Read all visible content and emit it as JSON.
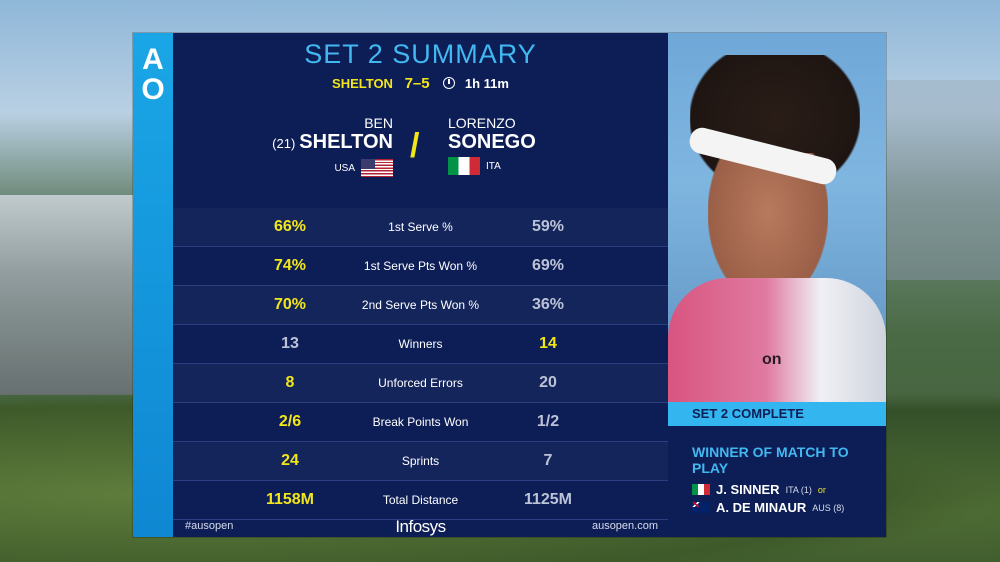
{
  "panel": {
    "logo": [
      "A",
      "O"
    ],
    "title": "SET 2 SUMMARY",
    "score_line": {
      "leader": "SHELTON",
      "score": "7–5",
      "duration": "1h 11m"
    },
    "player_left": {
      "first_name": "BEN",
      "seed": "(21)",
      "last_name": "SHELTON",
      "country": "USA",
      "flag": "usa-flag-icon"
    },
    "player_right": {
      "first_name": "LORENZO",
      "last_name": "SONEGO",
      "country": "ITA",
      "flag": "italy-flag-icon"
    },
    "divider": "/",
    "stats": [
      {
        "left": "66%",
        "label": "1st Serve %",
        "right": "59%",
        "leader": "left"
      },
      {
        "left": "74%",
        "label": "1st Serve Pts Won %",
        "right": "69%",
        "leader": "left"
      },
      {
        "left": "70%",
        "label": "2nd Serve Pts Won %",
        "right": "36%",
        "leader": "left"
      },
      {
        "left": "13",
        "label": "Winners",
        "right": "14",
        "leader": "right"
      },
      {
        "left": "8",
        "label": "Unforced Errors",
        "right": "20",
        "leader": "left"
      },
      {
        "left": "2/6",
        "label": "Break Points Won",
        "right": "1/2",
        "leader": "left"
      },
      {
        "left": "24",
        "label": "Sprints",
        "right": "7",
        "leader": "left"
      },
      {
        "left": "1158M",
        "label": "Total Distance",
        "right": "1125M",
        "leader": "left"
      }
    ],
    "footer": {
      "hashtag": "#ausopen",
      "sponsor": "Infosys",
      "site": "ausopen.com"
    }
  },
  "side": {
    "complete": "SET 2 COMPLETE",
    "winner_title": "WINNER OF MATCH TO PLAY",
    "candidates": [
      {
        "name": "J. SINNER",
        "info": "ITA (1)",
        "or": "or",
        "flag": "italy-flag-icon"
      },
      {
        "name": "A. DE MINAUR",
        "info": "AUS (8)",
        "or": "",
        "flag": "australia-flag-icon"
      }
    ],
    "photo_logo": "on"
  },
  "colors": {
    "panel_bg": "#0d1e57",
    "accent_blue": "#42b8f0",
    "brand_strip": "#1aa6e6",
    "leader_yellow": "#f2e61a",
    "trailing_grey": "#bcc3d6"
  }
}
